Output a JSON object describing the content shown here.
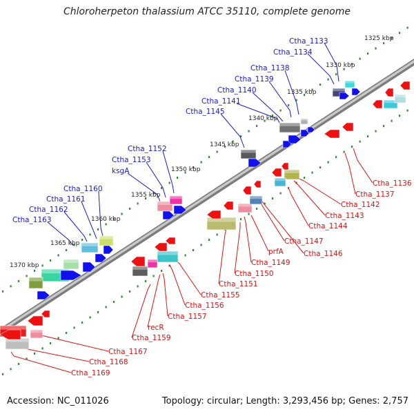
{
  "title": "Chloroherpeton thalassium ATCC 35110, complete genome",
  "footer": {
    "accession": "Accession: NC_011026",
    "summary": "Topology: circular; Length: 3,293,456 bp; Genes: 2,757"
  },
  "colors": {
    "backbone": "#8a8a8a",
    "ruler_dots": "#2e8b2e",
    "upper_labels": "#1a1acc",
    "lower_labels": "#dd1111"
  },
  "kbp_ticks": [
    "1325 kbp",
    "1330 kbp",
    "1335 kbp",
    "1340 kbp",
    "1345 kbp",
    "1350 kbp",
    "1355 kbp",
    "1360 kbp",
    "1365 kbp",
    "1370 kbp"
  ],
  "upper_labels": [
    "Ctha_1133",
    "Ctha_1134",
    "Ctha_1138",
    "Ctha_1139",
    "Ctha_1140",
    "Ctha_1141",
    "Ctha_1145",
    "Ctha_1152",
    "Ctha_1153",
    "ksgA",
    "Ctha_1160",
    "Ctha_1161",
    "Ctha_1162",
    "Ctha_1163"
  ],
  "lower_labels": [
    "Ctha_1136",
    "Ctha_1137",
    "Ctha_1142",
    "Ctha_1143",
    "Ctha_1144",
    "Ctha_1147",
    "Ctha_1146",
    "prfA",
    "Ctha_1149",
    "Ctha_1150",
    "Ctha_1151",
    "Ctha_1155",
    "Ctha_1156",
    "Ctha_1157",
    "recR",
    "Ctha_1159",
    "Ctha_1167",
    "Ctha_1168",
    "Ctha_1169"
  ]
}
